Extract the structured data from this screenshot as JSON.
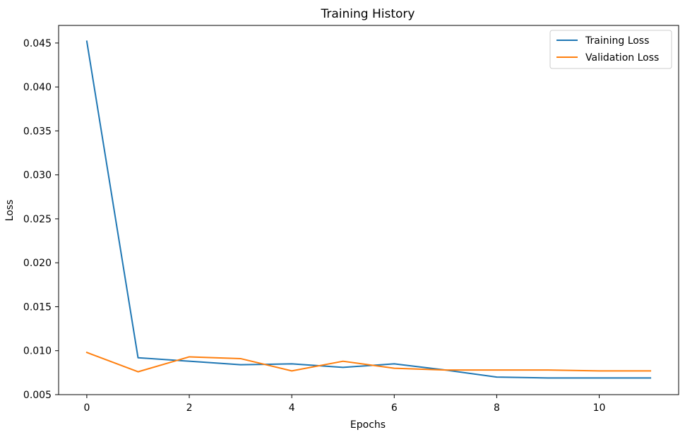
{
  "chart_data": {
    "type": "line",
    "title": "Training History",
    "xlabel": "Epochs",
    "ylabel": "Loss",
    "x": [
      0,
      1,
      2,
      3,
      4,
      5,
      6,
      7,
      8,
      9,
      10,
      11
    ],
    "xlim": [
      -0.55,
      11.55
    ],
    "ylim": [
      0.005,
      0.047
    ],
    "xticks": [
      0,
      2,
      4,
      6,
      8,
      10
    ],
    "xtick_labels": [
      "0",
      "2",
      "4",
      "6",
      "8",
      "10"
    ],
    "yticks": [
      0.005,
      0.01,
      0.015,
      0.02,
      0.025,
      0.03,
      0.035,
      0.04,
      0.045
    ],
    "ytick_labels": [
      "0.005",
      "0.010",
      "0.015",
      "0.020",
      "0.025",
      "0.030",
      "0.035",
      "0.040",
      "0.045"
    ],
    "grid": false,
    "legend_position": "top-right",
    "series": [
      {
        "name": "Training Loss",
        "color": "#1f77b4",
        "values": [
          0.0452,
          0.0092,
          0.0088,
          0.0084,
          0.0085,
          0.0081,
          0.0085,
          0.0078,
          0.007,
          0.0069,
          0.0069,
          0.0069
        ]
      },
      {
        "name": "Validation Loss",
        "color": "#ff7f0e",
        "values": [
          0.0098,
          0.0076,
          0.0093,
          0.0091,
          0.0077,
          0.0088,
          0.008,
          0.0078,
          0.0078,
          0.0078,
          0.0077,
          0.0077
        ]
      }
    ]
  }
}
